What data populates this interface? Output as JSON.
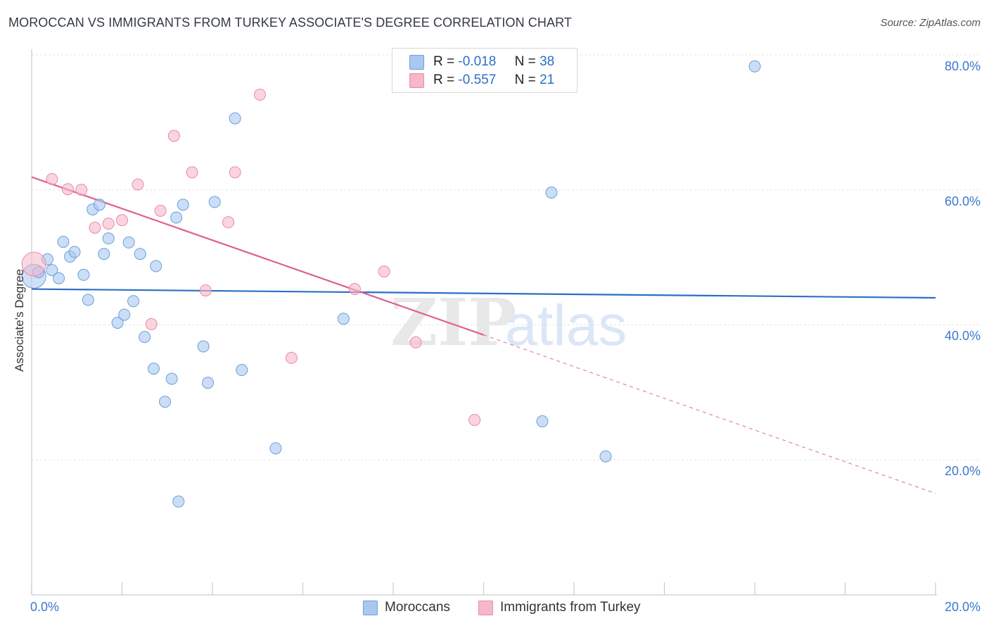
{
  "header": {
    "title": "MOROCCAN VS IMMIGRANTS FROM TURKEY ASSOCIATE'S DEGREE CORRELATION CHART",
    "source": "Source: ZipAtlas.com"
  },
  "legend": {
    "rows": [
      {
        "r_label": "R =",
        "r_value": "-0.018",
        "n_label": "N =",
        "n_value": "38",
        "color": "#a9c8f0"
      },
      {
        "r_label": "R =",
        "r_value": "-0.557",
        "n_label": "N =",
        "n_value": "21",
        "color": "#f6b8c9"
      }
    ]
  },
  "bottom_legend": [
    {
      "label": "Moroccans",
      "color": "#a9c8f0"
    },
    {
      "label": "Immigrants from Turkey",
      "color": "#f6b8c9"
    }
  ],
  "watermark": {
    "zip": "ZIP",
    "atlas": "atlas"
  },
  "chart_data": {
    "type": "scatter",
    "title": "MOROCCAN VS IMMIGRANTS FROM TURKEY ASSOCIATE'S DEGREE CORRELATION CHART",
    "xlabel": "",
    "ylabel": "Associate's Degree",
    "xlim": [
      0,
      20
    ],
    "ylim": [
      0,
      82
    ],
    "x_tick_labels": [
      "0.0%",
      "20.0%"
    ],
    "y_tick_labels": [
      "20.0%",
      "40.0%",
      "60.0%",
      "80.0%"
    ],
    "y_ticks": [
      20,
      40,
      60,
      80
    ],
    "grid": true,
    "legend_position": "top-center",
    "series": [
      {
        "name": "Moroccans",
        "color": "#a9c8f0",
        "stroke": "#6a9fdc",
        "trend": {
          "x": [
            0,
            20
          ],
          "y": [
            45.3,
            44.0
          ],
          "color": "#2b6fc4"
        },
        "points": [
          {
            "x": 0.05,
            "y": 47.2,
            "big": true
          },
          {
            "x": 0.15,
            "y": 47.8
          },
          {
            "x": 0.35,
            "y": 49.7
          },
          {
            "x": 0.45,
            "y": 48.1
          },
          {
            "x": 0.6,
            "y": 46.9
          },
          {
            "x": 0.7,
            "y": 52.3
          },
          {
            "x": 0.85,
            "y": 50.1
          },
          {
            "x": 0.95,
            "y": 50.8
          },
          {
            "x": 1.15,
            "y": 47.4
          },
          {
            "x": 1.25,
            "y": 43.7
          },
          {
            "x": 1.35,
            "y": 57.1
          },
          {
            "x": 1.5,
            "y": 57.8
          },
          {
            "x": 1.6,
            "y": 50.5
          },
          {
            "x": 1.7,
            "y": 52.8
          },
          {
            "x": 1.9,
            "y": 40.3
          },
          {
            "x": 2.05,
            "y": 41.5
          },
          {
            "x": 2.15,
            "y": 52.2
          },
          {
            "x": 2.25,
            "y": 43.5
          },
          {
            "x": 2.4,
            "y": 50.5
          },
          {
            "x": 2.5,
            "y": 38.2
          },
          {
            "x": 2.75,
            "y": 48.7
          },
          {
            "x": 2.7,
            "y": 33.5
          },
          {
            "x": 2.95,
            "y": 28.6
          },
          {
            "x": 3.1,
            "y": 32.0
          },
          {
            "x": 3.2,
            "y": 55.9
          },
          {
            "x": 3.35,
            "y": 57.8
          },
          {
            "x": 3.8,
            "y": 36.8
          },
          {
            "x": 3.9,
            "y": 31.4
          },
          {
            "x": 4.05,
            "y": 58.2
          },
          {
            "x": 4.5,
            "y": 70.6
          },
          {
            "x": 4.65,
            "y": 33.3
          },
          {
            "x": 5.4,
            "y": 21.7
          },
          {
            "x": 6.9,
            "y": 40.9
          },
          {
            "x": 11.3,
            "y": 25.7
          },
          {
            "x": 11.5,
            "y": 59.6
          },
          {
            "x": 12.7,
            "y": 20.5
          },
          {
            "x": 16.0,
            "y": 78.3
          },
          {
            "x": 3.25,
            "y": 13.8
          }
        ]
      },
      {
        "name": "Immigrants from Turkey",
        "color": "#f6b8c9",
        "stroke": "#e98aa6",
        "trend": {
          "x": [
            0,
            10.0
          ],
          "y": [
            61.9,
            38.5
          ],
          "dash_to": [
            20,
            15.0
          ],
          "color": "#e0608f"
        },
        "points": [
          {
            "x": 0.05,
            "y": 49.0,
            "big": true
          },
          {
            "x": 0.45,
            "y": 61.6
          },
          {
            "x": 0.8,
            "y": 60.1
          },
          {
            "x": 1.1,
            "y": 60.0
          },
          {
            "x": 1.4,
            "y": 54.4
          },
          {
            "x": 1.7,
            "y": 55.0
          },
          {
            "x": 2.0,
            "y": 55.5
          },
          {
            "x": 2.35,
            "y": 60.8
          },
          {
            "x": 2.65,
            "y": 40.1
          },
          {
            "x": 2.85,
            "y": 56.9
          },
          {
            "x": 3.15,
            "y": 68.0
          },
          {
            "x": 3.55,
            "y": 62.6
          },
          {
            "x": 3.85,
            "y": 45.1
          },
          {
            "x": 4.35,
            "y": 55.2
          },
          {
            "x": 4.5,
            "y": 62.6
          },
          {
            "x": 5.05,
            "y": 74.1
          },
          {
            "x": 5.75,
            "y": 35.1
          },
          {
            "x": 7.15,
            "y": 45.3
          },
          {
            "x": 7.8,
            "y": 47.9
          },
          {
            "x": 8.5,
            "y": 37.4
          },
          {
            "x": 9.8,
            "y": 25.9
          }
        ]
      }
    ]
  }
}
